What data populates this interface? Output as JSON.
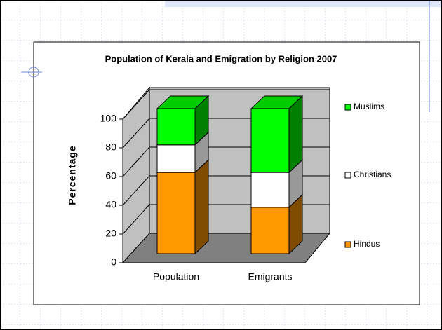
{
  "chart_data": {
    "type": "bar",
    "stacked": true,
    "three_d": true,
    "title": "Population of Kerala and Emigration by Religion 2007",
    "y_label": "Percentage",
    "categories": [
      "Population",
      "Emigrants"
    ],
    "series": [
      {
        "name": "Hindus",
        "color": "#ff9900",
        "values": [
          56,
          32
        ]
      },
      {
        "name": "Christians",
        "color": "#ffffff",
        "values": [
          19,
          24
        ]
      },
      {
        "name": "Muslims",
        "color": "#00ff00",
        "values": [
          25,
          44
        ]
      }
    ],
    "ylim": [
      0,
      100
    ],
    "yticks": [
      0,
      20,
      40,
      60,
      80,
      100
    ],
    "grid": true,
    "legend": "right"
  }
}
